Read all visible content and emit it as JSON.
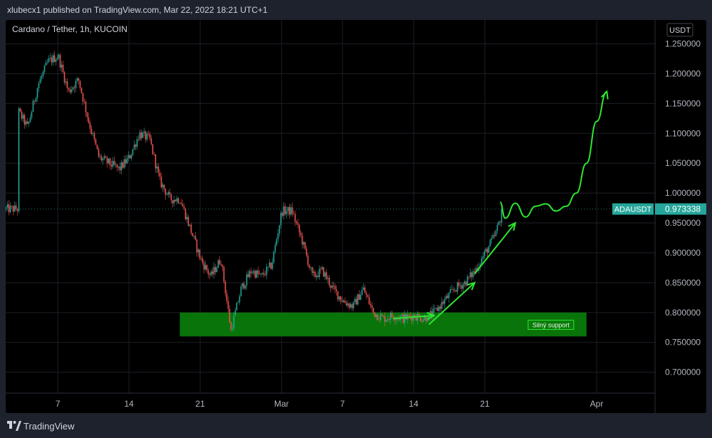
{
  "header": {
    "publisher": "xlubecx1 published on TradingView.com, Mar 22, 2022 18:21 UTC+1"
  },
  "footer": {
    "brand": "TradingView",
    "logo_icon": "tradingview-logo-icon"
  },
  "colors": {
    "background": "#000000",
    "up_candle": "#26a69a",
    "down_candle": "#ef5350",
    "drawing": "#2ee62e",
    "support_zone": "#0a7a0a",
    "price_label": "#26a69a"
  },
  "chart_data": {
    "type": "candlestick",
    "symbol_line": "Cardano / Tether, 1h, KUCOIN",
    "currency_button": "USDT",
    "x_ticks": [
      "7",
      "14",
      "21",
      "Mar",
      "7",
      "14",
      "21",
      "Apr"
    ],
    "y_ticks": [
      "1.250000",
      "1.200000",
      "1.150000",
      "1.100000",
      "1.050000",
      "1.000000",
      "0.950000",
      "0.900000",
      "0.850000",
      "0.800000",
      "0.750000",
      "0.700000"
    ],
    "ylim": [
      0.665,
      1.29
    ],
    "grid": true,
    "last_price": {
      "symbol": "ADAUSDT",
      "value": "0.973338",
      "numeric": 0.973338
    },
    "price_path": [
      [
        "2022-02-03",
        1.14
      ],
      [
        "2022-02-04",
        1.11
      ],
      [
        "2022-02-05",
        1.18
      ],
      [
        "2022-02-06",
        1.22
      ],
      [
        "2022-02-07",
        1.23
      ],
      [
        "2022-02-08",
        1.17
      ],
      [
        "2022-02-09",
        1.19
      ],
      [
        "2022-02-10",
        1.12
      ],
      [
        "2022-02-11",
        1.06
      ],
      [
        "2022-02-12",
        1.05
      ],
      [
        "2022-02-13",
        1.04
      ],
      [
        "2022-02-14",
        1.06
      ],
      [
        "2022-02-15",
        1.1
      ],
      [
        "2022-02-16",
        1.09
      ],
      [
        "2022-02-17",
        1.02
      ],
      [
        "2022-02-18",
        0.99
      ],
      [
        "2022-02-19",
        0.99
      ],
      [
        "2022-02-20",
        0.94
      ],
      [
        "2022-02-21",
        0.89
      ],
      [
        "2022-02-22",
        0.86
      ],
      [
        "2022-02-23",
        0.89
      ],
      [
        "2022-02-24",
        0.77
      ],
      [
        "2022-02-25",
        0.84
      ],
      [
        "2022-02-26",
        0.87
      ],
      [
        "2022-02-27",
        0.86
      ],
      [
        "2022-02-28",
        0.88
      ],
      [
        "2022-03-01",
        0.97
      ],
      [
        "2022-03-02",
        0.97
      ],
      [
        "2022-03-03",
        0.92
      ],
      [
        "2022-03-04",
        0.86
      ],
      [
        "2022-03-05",
        0.87
      ],
      [
        "2022-03-06",
        0.84
      ],
      [
        "2022-03-07",
        0.82
      ],
      [
        "2022-03-08",
        0.81
      ],
      [
        "2022-03-09",
        0.84
      ],
      [
        "2022-03-10",
        0.8
      ],
      [
        "2022-03-11",
        0.79
      ],
      [
        "2022-03-12",
        0.795
      ],
      [
        "2022-03-13",
        0.79
      ],
      [
        "2022-03-14",
        0.795
      ],
      [
        "2022-03-15",
        0.79
      ],
      [
        "2022-03-16",
        0.8
      ],
      [
        "2022-03-17",
        0.82
      ],
      [
        "2022-03-18",
        0.84
      ],
      [
        "2022-03-19",
        0.85
      ],
      [
        "2022-03-20",
        0.87
      ],
      [
        "2022-03-21",
        0.9
      ],
      [
        "2022-03-22",
        0.93
      ],
      [
        "2022-03-22T18:00",
        0.973338
      ]
    ],
    "support_zone": {
      "label": "Silný support",
      "from": "2022-02-19",
      "to": "2022-03-31",
      "low": 0.76,
      "high": 0.8
    },
    "forecast_path": [
      [
        "2022-03-22T12:00",
        0.985
      ],
      [
        "2022-03-23",
        0.958
      ],
      [
        "2022-03-24",
        0.983
      ],
      [
        "2022-03-25",
        0.96
      ],
      [
        "2022-03-26",
        0.978
      ],
      [
        "2022-03-27",
        0.982
      ],
      [
        "2022-03-28",
        0.97
      ],
      [
        "2022-03-29",
        0.978
      ],
      [
        "2022-03-30",
        1.0
      ],
      [
        "2022-03-31",
        1.05
      ],
      [
        "2022-04-01",
        1.12
      ],
      [
        "2022-04-02",
        1.17
      ]
    ],
    "arrows": [
      {
        "from": [
          "2022-03-12",
          0.79
        ],
        "to": [
          "2022-03-16",
          0.795
        ]
      },
      {
        "from": [
          "2022-03-15T12:00",
          0.78
        ],
        "to": [
          "2022-03-20",
          0.85
        ]
      },
      {
        "from": [
          "2022-03-20",
          0.865
        ],
        "to": [
          "2022-03-24",
          0.95
        ]
      }
    ]
  }
}
